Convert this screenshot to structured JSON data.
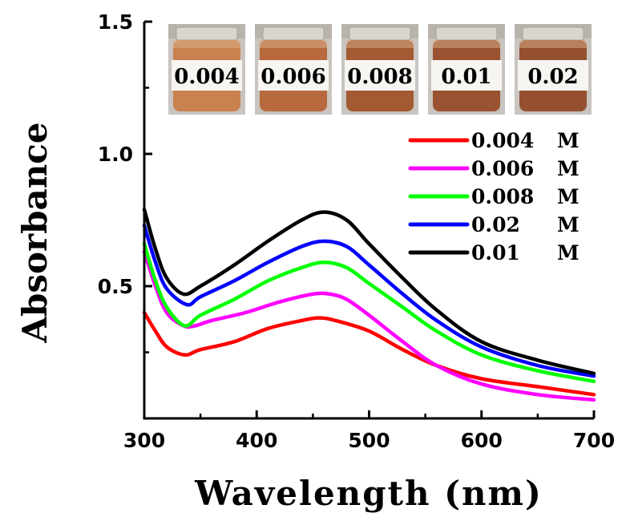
{
  "chart_data": {
    "type": "line",
    "title": "",
    "xlabel": "Wavelength (nm)",
    "ylabel": "Absorbance",
    "xlim": [
      300,
      700
    ],
    "ylim": [
      0,
      1.5
    ],
    "xticks": [
      "300",
      "400",
      "500",
      "600",
      "700"
    ],
    "yticks": [
      {
        "value": 0.5,
        "label": "0.5"
      },
      {
        "value": 1.0,
        "label": "1.0"
      },
      {
        "value": 1.5,
        "label": "1.5"
      }
    ],
    "grid": false,
    "legend_position": "right",
    "series": [
      {
        "name": "0.004",
        "unit": "M",
        "color": "#ff0000",
        "x": [
          300,
          310,
          320,
          336,
          350,
          380,
          410,
          440,
          455,
          470,
          500,
          530,
          560,
          600,
          650,
          700
        ],
        "y": [
          0.4,
          0.33,
          0.27,
          0.24,
          0.26,
          0.29,
          0.34,
          0.37,
          0.38,
          0.37,
          0.33,
          0.26,
          0.2,
          0.15,
          0.12,
          0.09
        ]
      },
      {
        "name": "0.006",
        "unit": "M",
        "color": "#ff00ff",
        "x": [
          300,
          310,
          320,
          335,
          345,
          360,
          390,
          420,
          450,
          465,
          480,
          500,
          530,
          560,
          600,
          650,
          700
        ],
        "y": [
          0.63,
          0.5,
          0.4,
          0.35,
          0.35,
          0.37,
          0.4,
          0.44,
          0.47,
          0.47,
          0.45,
          0.39,
          0.29,
          0.2,
          0.13,
          0.09,
          0.07
        ]
      },
      {
        "name": "0.008",
        "unit": "M",
        "color": "#00ff00",
        "x": [
          300,
          310,
          320,
          336,
          350,
          380,
          410,
          440,
          460,
          480,
          500,
          530,
          560,
          600,
          650,
          700
        ],
        "y": [
          0.66,
          0.52,
          0.42,
          0.35,
          0.39,
          0.45,
          0.52,
          0.57,
          0.59,
          0.57,
          0.51,
          0.42,
          0.33,
          0.24,
          0.18,
          0.14
        ]
      },
      {
        "name": "0.02",
        "unit": "M",
        "color": "#0000ff",
        "x": [
          300,
          310,
          320,
          338,
          350,
          380,
          410,
          440,
          460,
          480,
          500,
          530,
          560,
          600,
          650,
          700
        ],
        "y": [
          0.73,
          0.59,
          0.49,
          0.43,
          0.46,
          0.52,
          0.59,
          0.65,
          0.67,
          0.65,
          0.58,
          0.47,
          0.37,
          0.27,
          0.2,
          0.16
        ]
      },
      {
        "name": "0.01",
        "unit": "M",
        "color": "#000000",
        "x": [
          300,
          310,
          320,
          335,
          350,
          380,
          410,
          440,
          460,
          480,
          500,
          530,
          560,
          600,
          650,
          700
        ],
        "y": [
          0.79,
          0.64,
          0.53,
          0.47,
          0.5,
          0.58,
          0.67,
          0.75,
          0.78,
          0.75,
          0.66,
          0.53,
          0.41,
          0.29,
          0.22,
          0.17
        ]
      }
    ],
    "inset_vials": [
      "0.004",
      "0.006",
      "0.008",
      "0.01",
      "0.02"
    ]
  }
}
